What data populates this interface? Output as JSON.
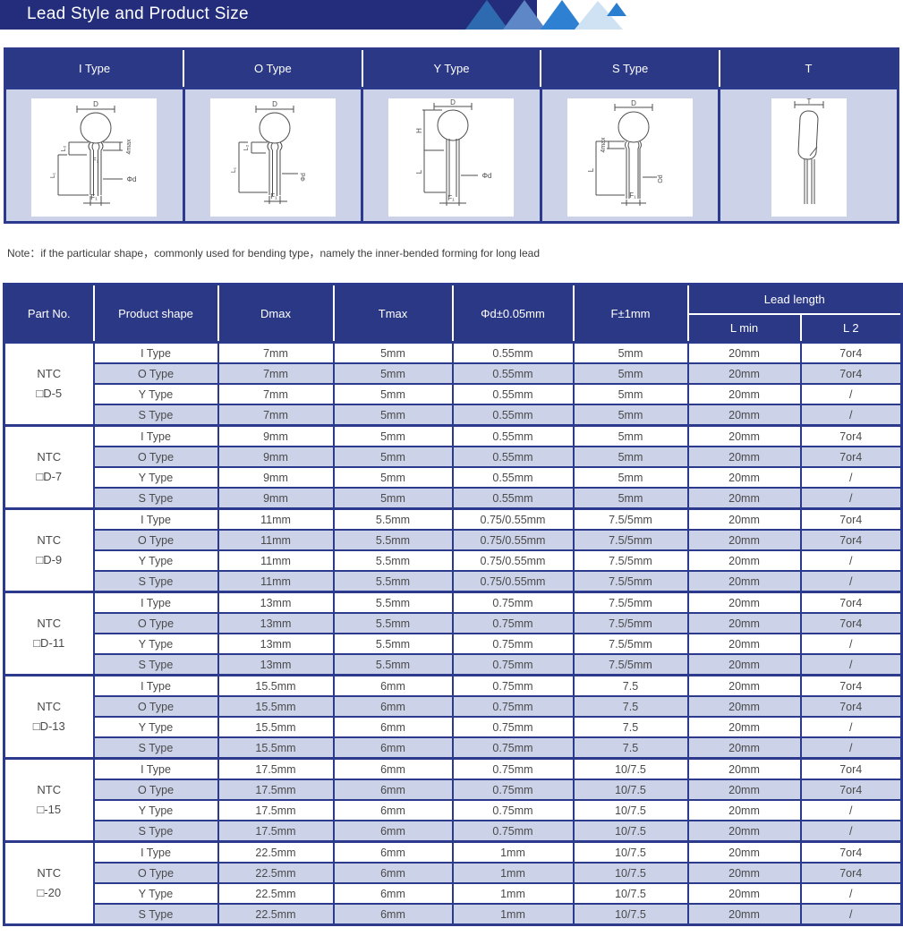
{
  "header": {
    "title": "Lead Style and Product Size"
  },
  "note": "Note：if the particular shape，commonly used for bending type，namely the inner-bended forming for long lead",
  "lead_style_table": {
    "type_headers": [
      "I Type",
      "O Type",
      "Y Type",
      "S Type",
      "T"
    ]
  },
  "diagrams": {
    "i_type": {
      "d": "D",
      "max4": "4max",
      "l2": "L₂",
      "f2": "F₂",
      "l1": "L₁",
      "phid": "Φd",
      "f1": "F₁"
    },
    "o_type": {
      "d": "D",
      "l2": "L₂",
      "l1": "L₁",
      "phid": "Φd",
      "f1": "F₁"
    },
    "y_type": {
      "d": "D",
      "h": "H",
      "l": "L",
      "phid": "Φd",
      "f1": "F₁"
    },
    "s_type": {
      "d": "D",
      "max4": "4max",
      "l": "L",
      "od": "Od",
      "f1": "F₁"
    },
    "t_type": {
      "t": "T"
    }
  },
  "size_table": {
    "col_headers": [
      "Part No.",
      "Product shape",
      "Dmax",
      "Tmax",
      "Φd±0.05mm",
      "F±1mm"
    ],
    "lead_length_header": "Lead length",
    "lead_sub_headers": [
      "L min",
      "L 2"
    ],
    "groups": [
      {
        "part_no": [
          "NTC",
          "□D-5"
        ],
        "rows": [
          [
            "I Type",
            "7mm",
            "5mm",
            "0.55mm",
            "5mm",
            "20mm",
            "7or4"
          ],
          [
            "O Type",
            "7mm",
            "5mm",
            "0.55mm",
            "5mm",
            "20mm",
            "7or4"
          ],
          [
            "Y Type",
            "7mm",
            "5mm",
            "0.55mm",
            "5mm",
            "20mm",
            "/"
          ],
          [
            "S Type",
            "7mm",
            "5mm",
            "0.55mm",
            "5mm",
            "20mm",
            "/"
          ]
        ]
      },
      {
        "part_no": [
          "NTC",
          "□D-7"
        ],
        "rows": [
          [
            "I Type",
            "9mm",
            "5mm",
            "0.55mm",
            "5mm",
            "20mm",
            "7or4"
          ],
          [
            "O Type",
            "9mm",
            "5mm",
            "0.55mm",
            "5mm",
            "20mm",
            "7or4"
          ],
          [
            "Y Type",
            "9mm",
            "5mm",
            "0.55mm",
            "5mm",
            "20mm",
            "/"
          ],
          [
            "S Type",
            "9mm",
            "5mm",
            "0.55mm",
            "5mm",
            "20mm",
            "/"
          ]
        ]
      },
      {
        "part_no": [
          "NTC",
          "□D-9"
        ],
        "rows": [
          [
            "I Type",
            "11mm",
            "5.5mm",
            "0.75/0.55mm",
            "7.5/5mm",
            "20mm",
            "7or4"
          ],
          [
            "O Type",
            "11mm",
            "5.5mm",
            "0.75/0.55mm",
            "7.5/5mm",
            "20mm",
            "7or4"
          ],
          [
            "Y Type",
            "11mm",
            "5.5mm",
            "0.75/0.55mm",
            "7.5/5mm",
            "20mm",
            "/"
          ],
          [
            "S Type",
            "11mm",
            "5.5mm",
            "0.75/0.55mm",
            "7.5/5mm",
            "20mm",
            "/"
          ]
        ]
      },
      {
        "part_no": [
          "NTC",
          "□D-11"
        ],
        "rows": [
          [
            "I Type",
            "13mm",
            "5.5mm",
            "0.75mm",
            "7.5/5mm",
            "20mm",
            "7or4"
          ],
          [
            "O Type",
            "13mm",
            "5.5mm",
            "0.75mm",
            "7.5/5mm",
            "20mm",
            "7or4"
          ],
          [
            "Y Type",
            "13mm",
            "5.5mm",
            "0.75mm",
            "7.5/5mm",
            "20mm",
            "/"
          ],
          [
            "S Type",
            "13mm",
            "5.5mm",
            "0.75mm",
            "7.5/5mm",
            "20mm",
            "/"
          ]
        ]
      },
      {
        "part_no": [
          "NTC",
          "□D-13"
        ],
        "rows": [
          [
            "I Type",
            "15.5mm",
            "6mm",
            "0.75mm",
            "7.5",
            "20mm",
            "7or4"
          ],
          [
            "O Type",
            "15.5mm",
            "6mm",
            "0.75mm",
            "7.5",
            "20mm",
            "7or4"
          ],
          [
            "Y Type",
            "15.5mm",
            "6mm",
            "0.75mm",
            "7.5",
            "20mm",
            "/"
          ],
          [
            "S Type",
            "15.5mm",
            "6mm",
            "0.75mm",
            "7.5",
            "20mm",
            "/"
          ]
        ]
      },
      {
        "part_no": [
          "NTC",
          "□-15"
        ],
        "rows": [
          [
            "I Type",
            "17.5mm",
            "6mm",
            "0.75mm",
            "10/7.5",
            "20mm",
            "7or4"
          ],
          [
            "O Type",
            "17.5mm",
            "6mm",
            "0.75mm",
            "10/7.5",
            "20mm",
            "7or4"
          ],
          [
            "Y Type",
            "17.5mm",
            "6mm",
            "0.75mm",
            "10/7.5",
            "20mm",
            "/"
          ],
          [
            "S Type",
            "17.5mm",
            "6mm",
            "0.75mm",
            "10/7.5",
            "20mm",
            "/"
          ]
        ]
      },
      {
        "part_no": [
          "NTC",
          "□-20"
        ],
        "rows": [
          [
            "I Type",
            "22.5mm",
            "6mm",
            "1mm",
            "10/7.5",
            "20mm",
            "7or4"
          ],
          [
            "O Type",
            "22.5mm",
            "6mm",
            "1mm",
            "10/7.5",
            "20mm",
            "7or4"
          ],
          [
            "Y Type",
            "22.5mm",
            "6mm",
            "1mm",
            "10/7.5",
            "20mm",
            "/"
          ],
          [
            "S Type",
            "22.5mm",
            "6mm",
            "1mm",
            "10/7.5",
            "20mm",
            "/"
          ]
        ]
      }
    ]
  },
  "colors": {
    "navy_bar": "#232d7c",
    "header_cell": "#2b3885",
    "table_border": "#2b3a8c",
    "shaded_row": "#ccd2e8",
    "triangle_blues": [
      "#2e6ab0",
      "#5d87c7",
      "#2e80d2",
      "#cfe2f4",
      "#2a7ed0"
    ]
  }
}
